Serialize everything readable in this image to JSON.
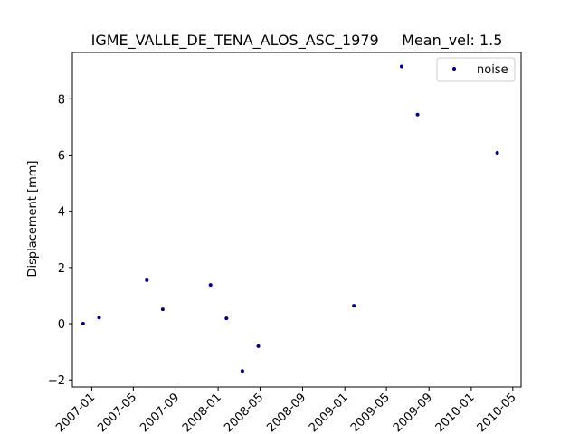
{
  "chart_data": {
    "type": "scatter",
    "title": "IGME_VALLE_DE_TENA_ALOS_ASC_1979     Mean_vel: 1.5",
    "xlabel": "",
    "ylabel": "Displacement [mm]",
    "xlim": [
      "2006-11-06",
      "2010-05-25"
    ],
    "ylim": [
      -2.25,
      9.65
    ],
    "x_ticks": [
      "2007-01",
      "2007-05",
      "2007-09",
      "2008-01",
      "2008-05",
      "2008-09",
      "2009-01",
      "2009-05",
      "2009-09",
      "2010-01",
      "2010-05"
    ],
    "y_ticks": [
      -2,
      0,
      2,
      4,
      6,
      8
    ],
    "grid": false,
    "legend": {
      "position": "top-right"
    },
    "series": [
      {
        "name": "noise",
        "color": "#00007f",
        "marker": "dot",
        "points": [
          {
            "x": "2006-12-07",
            "y": 0.0
          },
          {
            "x": "2007-01-22",
            "y": 0.22
          },
          {
            "x": "2007-06-09",
            "y": 1.55
          },
          {
            "x": "2007-07-25",
            "y": 0.51
          },
          {
            "x": "2007-12-10",
            "y": 1.38
          },
          {
            "x": "2008-01-25",
            "y": 0.19
          },
          {
            "x": "2008-03-11",
            "y": -1.68
          },
          {
            "x": "2008-04-26",
            "y": -0.8
          },
          {
            "x": "2009-01-27",
            "y": 0.64
          },
          {
            "x": "2009-06-14",
            "y": 9.15
          },
          {
            "x": "2009-07-30",
            "y": 7.44
          },
          {
            "x": "2010-03-17",
            "y": 6.08
          }
        ]
      }
    ]
  }
}
